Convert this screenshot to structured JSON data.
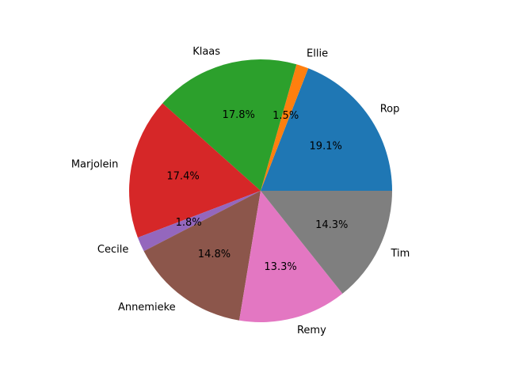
{
  "chart_data": {
    "type": "pie",
    "title": "",
    "start_angle_deg": 0,
    "direction": "counterclockwise",
    "categories": [
      "Rop",
      "Ellie",
      "Klaas",
      "Marjolein",
      "Cecile",
      "Annemieke",
      "Remy",
      "Tim"
    ],
    "values": [
      19.1,
      1.5,
      17.8,
      17.4,
      1.8,
      14.8,
      13.3,
      14.3
    ],
    "percent_labels": [
      "19.1%",
      "1.5%",
      "17.8%",
      "17.4%",
      "1.8%",
      "14.8%",
      "13.3%",
      "14.3%"
    ],
    "colors": [
      "#1f77b4",
      "#ff7f0e",
      "#2ca02c",
      "#d62728",
      "#9467bd",
      "#8c564b",
      "#e377c2",
      "#7f7f7f"
    ]
  }
}
